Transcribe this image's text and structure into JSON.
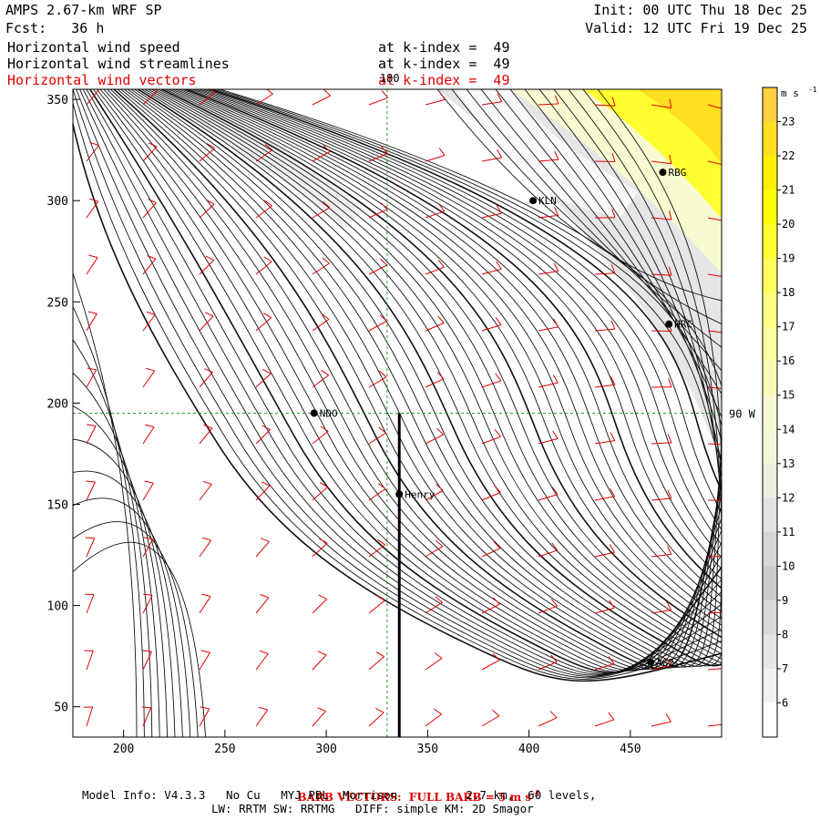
{
  "header": {
    "model": "AMPS 2.67-km WRF SP",
    "fcst": "Fcst:   36 h",
    "init": "Init: 00 UTC Thu 18 Dec 25",
    "valid": "Valid: 12 UTC Fri 19 Dec 25",
    "fields": [
      {
        "label": "Horizontal wind speed",
        "level": "at k-index =  49",
        "color": "#000000"
      },
      {
        "label": "Horizontal wind streamlines",
        "level": "at k-index =  49",
        "color": "#000000"
      },
      {
        "label": "Horizontal wind vectors",
        "level": "at k-index =  49",
        "color": "#e00000"
      }
    ]
  },
  "footer": {
    "barb_note": "BARB VECTORS:  FULL BARB = 5 m s",
    "barb_sup": "-1",
    "model_info": "Model Info: V4.3.3   No Cu   MYJ PBL  Morrison          2.7 km,  60 levels,",
    "physics": "LW: RRTM SW: RRTMG   DIFF: simple KM: 2D Smagor"
  },
  "chart_data": {
    "type": "streamline-map",
    "xlim": [
      175,
      495
    ],
    "ylim": [
      35,
      355
    ],
    "x_ticks": [
      200,
      250,
      300,
      350,
      400,
      450
    ],
    "y_ticks": [
      50,
      100,
      150,
      200,
      250,
      300,
      350
    ],
    "grid_line_labels": {
      "vertical": "180",
      "horizontal": "90 W"
    },
    "grid_lines": {
      "x": 330,
      "y": 195
    },
    "stations": [
      {
        "name": "NDO",
        "x": 294,
        "y": 195
      },
      {
        "name": "Henry",
        "x": 336,
        "y": 155
      },
      {
        "name": "KLN",
        "x": 402,
        "y": 300
      },
      {
        "name": "RBG",
        "x": 466,
        "y": 314
      },
      {
        "name": "HRC",
        "x": 469,
        "y": 239
      },
      {
        "name": "AG2",
        "x": 460,
        "y": 72
      }
    ],
    "colorbar": {
      "unit": "m s",
      "unit_sup": "-1",
      "labels": [
        6,
        7,
        8,
        9,
        10,
        11,
        12,
        13,
        14,
        15,
        16,
        17,
        18,
        19,
        20,
        21,
        22,
        23
      ],
      "colors": [
        "#ffffff",
        "#f2f2f2",
        "#e6e6e6",
        "#d9d9d9",
        "#cccccc",
        "#d6d6d6",
        "#e3e3e3",
        "#eeeede",
        "#f6f6dc",
        "#fafad2",
        "#fbfbb8",
        "#fcfca0",
        "#fdfd80",
        "#fefe5c",
        "#ffff30",
        "#ffff00",
        "#fff000",
        "#ffe020",
        "#ffd040"
      ]
    }
  }
}
